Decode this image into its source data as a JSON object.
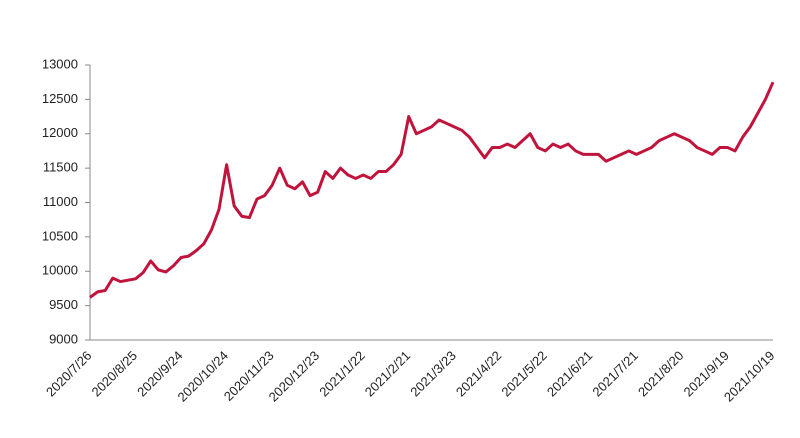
{
  "chart_data": {
    "type": "line",
    "categories": [
      "2020/7/26",
      null,
      null,
      null,
      null,
      null,
      "2020/8/25",
      null,
      null,
      null,
      null,
      null,
      "2020/9/24",
      null,
      null,
      null,
      null,
      null,
      "2020/10/24",
      null,
      null,
      null,
      null,
      null,
      "2020/11/23",
      null,
      null,
      null,
      null,
      null,
      "2020/12/23",
      null,
      null,
      null,
      null,
      null,
      "2021/1/22",
      null,
      null,
      null,
      null,
      null,
      "2021/2/21",
      null,
      null,
      null,
      null,
      null,
      "2021/3/23",
      null,
      null,
      null,
      null,
      null,
      "2021/4/22",
      null,
      null,
      null,
      null,
      null,
      "2021/5/22",
      null,
      null,
      null,
      null,
      null,
      "2021/6/21",
      null,
      null,
      null,
      null,
      null,
      "2021/7/21",
      null,
      null,
      null,
      null,
      null,
      "2021/8/20",
      null,
      null,
      null,
      null,
      null,
      "2021/9/19",
      null,
      null,
      null,
      null,
      null,
      "2021/10/19"
    ],
    "values": [
      9620,
      9700,
      9720,
      9900,
      9850,
      9870,
      9890,
      9980,
      10150,
      10020,
      9990,
      10080,
      10200,
      10220,
      10300,
      10400,
      10600,
      10900,
      11550,
      10950,
      10800,
      10780,
      11050,
      11100,
      11250,
      11500,
      11250,
      11200,
      11300,
      11100,
      11150,
      11450,
      11350,
      11500,
      11400,
      11350,
      11400,
      11350,
      11450,
      11450,
      11550,
      11700,
      12250,
      12000,
      12050,
      12100,
      12200,
      12150,
      12100,
      12050,
      11950,
      11800,
      11650,
      11800,
      11800,
      11850,
      11800,
      11900,
      12000,
      11800,
      11750,
      11850,
      11800,
      11850,
      11750,
      11700,
      11700,
      11700,
      11600,
      11650,
      11700,
      11750,
      11700,
      11750,
      11800,
      11900,
      11950,
      12000,
      11950,
      11900,
      11800,
      11750,
      11700,
      11800,
      11800,
      11750,
      11950,
      12100,
      12300,
      12500,
      12750
    ],
    "color": "#c0143c",
    "ylim": [
      9000,
      13000
    ],
    "yticks": [
      9000,
      9500,
      10000,
      10500,
      11000,
      11500,
      12000,
      12500,
      13000
    ],
    "grid": false
  }
}
